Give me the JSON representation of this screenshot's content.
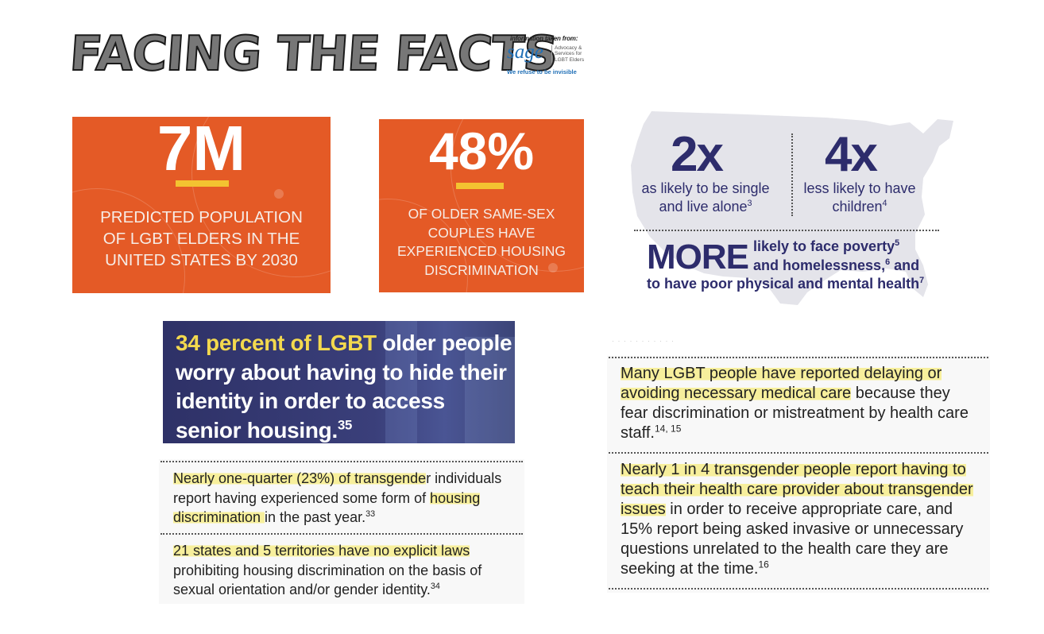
{
  "header": {
    "title": "FACING THE FACTS",
    "source_note": "information taken from:",
    "org_name": "sage",
    "org_desc_lines": [
      "Advocacy &",
      "Services for",
      "LGBT Elders"
    ],
    "org_tagline": "We refuse to be invisible"
  },
  "cards": [
    {
      "stat": "7M",
      "label_lines": [
        "PREDICTED POPULATION",
        "OF LGBT ELDERS IN THE",
        "UNITED STATES BY 2030"
      ]
    },
    {
      "stat": "48%",
      "label_lines": [
        "OF OLDER SAME-SEX",
        "COUPLES HAVE",
        "EXPERIENCED HOUSING",
        "DISCRIMINATION"
      ]
    }
  ],
  "map_panel": {
    "stat_left": "2x",
    "sub_left_lines": [
      "as likely to be single",
      "and live alone"
    ],
    "sup_left": "3",
    "stat_right": "4x",
    "sub_right_lines": [
      "less likely to have",
      "children"
    ],
    "sup_right": "4",
    "more_word": "MORE",
    "more_line1": "likely to face poverty",
    "more_sup1": "5",
    "more_line2a": "and homelessness,",
    "more_sup2": "6",
    "more_line2b": " and",
    "more_line3": "to have poor physical and mental health",
    "more_sup3": "7"
  },
  "photo_card": {
    "highlight": "34 percent of LGBT",
    "text": " older people worry about having to hide their identity in order to access senior housing.",
    "sup": "35"
  },
  "left_facts": [
    {
      "hl1": "Nearly one-quarter (23%) of transgende",
      "mid1": "r individuals report having experienced some form of ",
      "hl2": "housing discrimination ",
      "rest": "in the past year.",
      "sup": "33"
    },
    {
      "hl1": "21 states and 5 territories have no explicit laws",
      "rest": " prohibiting housing discrimination on the basis of sexual orientation and/or gender identity.",
      "sup": "34"
    }
  ],
  "right_facts": [
    {
      "hl1": "Many LGBT people have reported delaying or avoiding necessary medical care",
      "rest": " because they fear discrimination or mistreatment by health care staff.",
      "sup": "14, 15"
    },
    {
      "hl1": "Nearly 1 in 4 transgender people report having to teach their health care provider about transgender issues",
      "rest": " in order to receive appropriate care, and 15% report being asked invasive or unnecessary questions unrelated to the health care they are seeking at the time.",
      "sup": "16"
    }
  ],
  "colors": {
    "orange": "#e45a26",
    "yellow": "#f3c331",
    "navy": "#2d2c6c",
    "highlight": "#f7ef9c"
  }
}
